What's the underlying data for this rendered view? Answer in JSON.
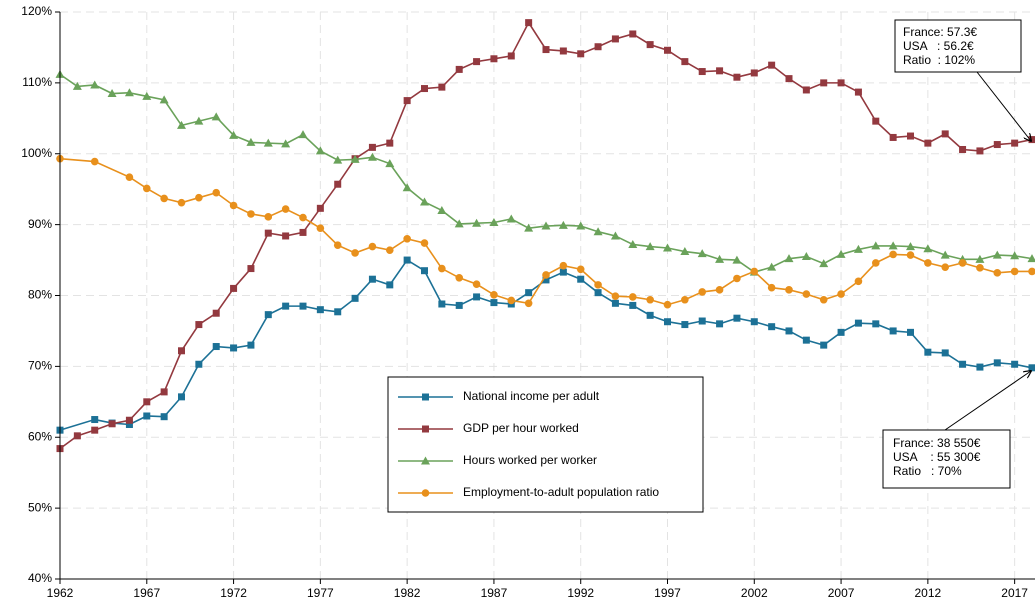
{
  "chart_data": {
    "type": "line",
    "xlim": [
      1962,
      2018
    ],
    "xticks": [
      1962,
      1967,
      1972,
      1977,
      1982,
      1987,
      1992,
      1997,
      2002,
      2007,
      2012,
      2017
    ],
    "ylim": [
      40,
      120
    ],
    "yticks": [
      {
        "value": 40,
        "label": "40%"
      },
      {
        "value": 50,
        "label": "50%"
      },
      {
        "value": 60,
        "label": "60%"
      },
      {
        "value": 70,
        "label": "70%"
      },
      {
        "value": 80,
        "label": "80%"
      },
      {
        "value": 90,
        "label": "90%"
      },
      {
        "value": 100,
        "label": "100%"
      },
      {
        "value": 110,
        "label": "110%"
      },
      {
        "value": 120,
        "label": "120%"
      }
    ],
    "grid": true,
    "series": [
      {
        "name": "National income per adult",
        "color": "#1c7196",
        "marker": "square",
        "x": [
          1962,
          1964,
          1965,
          1966,
          1967,
          1968,
          1969,
          1970,
          1971,
          1972,
          1973,
          1974,
          1975,
          1976,
          1977,
          1978,
          1979,
          1980,
          1981,
          1982,
          1983,
          1984,
          1985,
          1986,
          1987,
          1988,
          1989,
          1990,
          1991,
          1992,
          1993,
          1994,
          1995,
          1996,
          1997,
          1998,
          1999,
          2000,
          2001,
          2002,
          2003,
          2004,
          2005,
          2006,
          2007,
          2008,
          2009,
          2010,
          2011,
          2012,
          2013,
          2014,
          2015,
          2016,
          2017,
          2018
        ],
        "values": [
          61.0,
          62.5,
          62.0,
          61.8,
          63.0,
          62.9,
          65.7,
          70.3,
          72.8,
          72.6,
          73.0,
          77.3,
          78.5,
          78.5,
          78.0,
          77.7,
          79.6,
          82.3,
          81.5,
          85.0,
          83.5,
          78.8,
          78.6,
          79.8,
          79.0,
          78.8,
          80.4,
          82.2,
          83.3,
          82.3,
          80.4,
          78.9,
          78.6,
          77.2,
          76.3,
          75.9,
          76.4,
          76.0,
          76.8,
          76.3,
          75.6,
          75.0,
          73.7,
          73.0,
          74.8,
          76.1,
          76.0,
          75.0,
          74.8,
          72.0,
          71.9,
          70.3,
          69.9,
          70.5,
          70.3,
          69.8
        ]
      },
      {
        "name": "GDP per hour worked",
        "color": "#93393f",
        "marker": "square",
        "x": [
          1962,
          1963,
          1964,
          1965,
          1966,
          1967,
          1968,
          1969,
          1970,
          1971,
          1972,
          1973,
          1974,
          1975,
          1976,
          1977,
          1978,
          1979,
          1980,
          1981,
          1982,
          1983,
          1984,
          1985,
          1986,
          1987,
          1988,
          1989,
          1990,
          1991,
          1992,
          1993,
          1994,
          1995,
          1996,
          1997,
          1998,
          1999,
          2000,
          2001,
          2002,
          2003,
          2004,
          2005,
          2006,
          2007,
          2008,
          2009,
          2010,
          2011,
          2012,
          2013,
          2014,
          2015,
          2016,
          2017,
          2018
        ],
        "values": [
          58.4,
          60.2,
          61.0,
          61.9,
          62.4,
          65.0,
          66.4,
          72.2,
          75.9,
          77.5,
          81.0,
          83.8,
          88.8,
          88.4,
          88.9,
          92.3,
          95.7,
          99.3,
          100.9,
          101.5,
          107.5,
          109.2,
          109.4,
          111.9,
          113.0,
          113.4,
          113.8,
          118.5,
          114.7,
          114.5,
          114.1,
          115.1,
          116.2,
          116.9,
          115.4,
          114.6,
          113.0,
          111.6,
          111.7,
          110.8,
          111.4,
          112.5,
          110.6,
          109.0,
          110.0,
          110.0,
          108.7,
          104.6,
          102.3,
          102.5,
          101.5,
          102.8,
          100.6,
          100.4,
          101.3,
          101.5,
          102.0
        ]
      },
      {
        "name": "Hours worked per worker",
        "color": "#6aa25a",
        "marker": "triangle",
        "x": [
          1962,
          1963,
          1964,
          1965,
          1966,
          1967,
          1968,
          1969,
          1970,
          1971,
          1972,
          1973,
          1974,
          1975,
          1976,
          1977,
          1978,
          1979,
          1980,
          1981,
          1982,
          1983,
          1984,
          1985,
          1986,
          1987,
          1988,
          1989,
          1990,
          1991,
          1992,
          1993,
          1994,
          1995,
          1996,
          1997,
          1998,
          1999,
          2000,
          2001,
          2002,
          2003,
          2004,
          2005,
          2006,
          2007,
          2008,
          2009,
          2010,
          2011,
          2012,
          2013,
          2014,
          2015,
          2016,
          2017,
          2018
        ],
        "values": [
          111.2,
          109.5,
          109.7,
          108.5,
          108.6,
          108.1,
          107.6,
          104.0,
          104.6,
          105.2,
          102.6,
          101.6,
          101.5,
          101.4,
          102.7,
          100.4,
          99.1,
          99.2,
          99.5,
          98.6,
          95.2,
          93.2,
          92.0,
          90.1,
          90.2,
          90.3,
          90.8,
          89.5,
          89.8,
          89.9,
          89.8,
          89.0,
          88.4,
          87.2,
          86.9,
          86.7,
          86.2,
          85.9,
          85.1,
          85.0,
          83.3,
          84.0,
          85.2,
          85.5,
          84.5,
          85.8,
          86.5,
          87.0,
          87.0,
          86.9,
          86.6,
          85.7,
          85.1,
          85.1,
          85.7,
          85.6,
          85.2
        ]
      },
      {
        "name": "Employment-to-adult population ratio",
        "color": "#e8901c",
        "marker": "circle",
        "x": [
          1962,
          1964,
          1966,
          1967,
          1968,
          1969,
          1970,
          1971,
          1972,
          1973,
          1974,
          1975,
          1976,
          1977,
          1978,
          1979,
          1980,
          1981,
          1982,
          1983,
          1984,
          1985,
          1986,
          1987,
          1988,
          1989,
          1990,
          1991,
          1992,
          1993,
          1994,
          1995,
          1996,
          1997,
          1998,
          1999,
          2000,
          2001,
          2002,
          2003,
          2004,
          2005,
          2006,
          2007,
          2008,
          2009,
          2010,
          2011,
          2012,
          2013,
          2014,
          2015,
          2016,
          2017,
          2018
        ],
        "values": [
          99.3,
          98.9,
          96.7,
          95.1,
          93.7,
          93.1,
          93.8,
          94.5,
          92.7,
          91.5,
          91.1,
          92.2,
          91.0,
          89.5,
          87.1,
          86.0,
          86.9,
          86.4,
          88.0,
          87.4,
          83.8,
          82.5,
          81.6,
          80.1,
          79.3,
          78.9,
          82.9,
          84.2,
          83.7,
          81.5,
          79.9,
          79.8,
          79.4,
          78.7,
          79.4,
          80.5,
          80.8,
          82.4,
          83.4,
          81.1,
          80.8,
          80.2,
          79.4,
          80.2,
          82.0,
          84.6,
          85.8,
          85.7,
          84.6,
          84.0,
          84.6,
          83.9,
          83.2,
          83.4,
          83.4
        ]
      }
    ],
    "annotations": [
      {
        "lines": [
          "France: 57.3€",
          "USA   : 56.2€",
          "Ratio  : 102%"
        ]
      },
      {
        "lines": [
          "France: 38 550€",
          "USA    : 55 300€",
          "Ratio   : 70%"
        ]
      }
    ]
  }
}
